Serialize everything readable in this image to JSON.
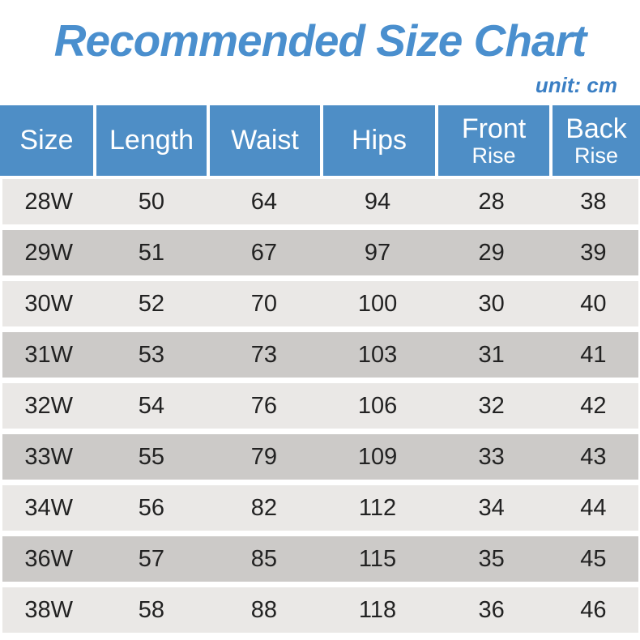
{
  "title": "Recommended Size Chart",
  "unit_label": "unit: cm",
  "colors": {
    "title_blue": "#4a8fce",
    "unit_blue": "#3b7fc4",
    "header_bg": "#4e8ec6",
    "header_text": "#ffffff",
    "row_light": "#eae8e6",
    "row_dark": "#cccac8",
    "row_text": "#222222"
  },
  "header": {
    "cells": [
      {
        "l1": "Size",
        "l2": ""
      },
      {
        "l1": "Length",
        "l2": ""
      },
      {
        "l1": "Waist",
        "l2": ""
      },
      {
        "l1": "Hips",
        "l2": ""
      },
      {
        "l1": "Front",
        "l2": "Rise"
      },
      {
        "l1": "Back",
        "l2": "Rise"
      }
    ]
  },
  "chart_data": {
    "type": "table",
    "title": "Recommended Size Chart",
    "unit": "cm",
    "columns": [
      "Size",
      "Length",
      "Waist",
      "Hips",
      "Front Rise",
      "Back Rise"
    ],
    "rows": [
      [
        "28W",
        50,
        64,
        94,
        28,
        38
      ],
      [
        "29W",
        51,
        67,
        97,
        29,
        39
      ],
      [
        "30W",
        52,
        70,
        100,
        30,
        40
      ],
      [
        "31W",
        53,
        73,
        103,
        31,
        41
      ],
      [
        "32W",
        54,
        76,
        106,
        32,
        42
      ],
      [
        "33W",
        55,
        79,
        109,
        33,
        43
      ],
      [
        "34W",
        56,
        82,
        112,
        34,
        44
      ],
      [
        "36W",
        57,
        85,
        115,
        35,
        45
      ],
      [
        "38W",
        58,
        88,
        118,
        36,
        46
      ]
    ]
  }
}
